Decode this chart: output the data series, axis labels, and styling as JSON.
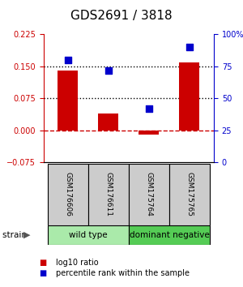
{
  "title": "GDS2691 / 3818",
  "samples": [
    "GSM176606",
    "GSM176611",
    "GSM175764",
    "GSM175765"
  ],
  "log10_ratio": [
    0.14,
    0.04,
    -0.01,
    0.16
  ],
  "percentile_rank": [
    80,
    72,
    42,
    90
  ],
  "left_ylim": [
    -0.075,
    0.225
  ],
  "right_ylim": [
    0,
    100
  ],
  "left_yticks": [
    -0.075,
    0,
    0.075,
    0.15,
    0.225
  ],
  "right_yticks": [
    0,
    25,
    50,
    75,
    100
  ],
  "right_yticklabels": [
    "0",
    "25",
    "50",
    "75",
    "100%"
  ],
  "hlines_dotted": [
    0.15,
    0.075
  ],
  "hline_dashed": 0.0,
  "bar_color": "#cc0000",
  "scatter_color": "#0000cc",
  "groups": [
    {
      "label": "wild type",
      "samples": [
        0,
        1
      ],
      "color": "#aaeaaa"
    },
    {
      "label": "dominant negative",
      "samples": [
        2,
        3
      ],
      "color": "#55cc55"
    }
  ],
  "group_label_fontsize": 7.5,
  "sample_box_color": "#cccccc",
  "legend_items": [
    {
      "color": "#cc0000",
      "label": "log10 ratio"
    },
    {
      "color": "#0000cc",
      "label": "percentile rank within the sample"
    }
  ],
  "bar_width": 0.5,
  "scatter_size": 35,
  "title_fontsize": 11,
  "tick_fontsize": 7,
  "sample_fontsize": 6.5
}
